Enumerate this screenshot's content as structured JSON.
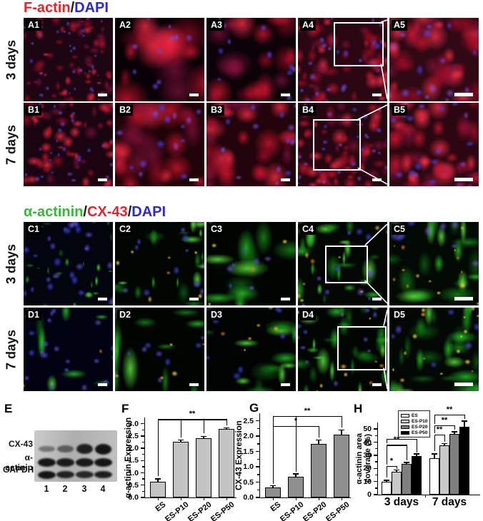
{
  "panel_letters": {
    "e": "E",
    "f": "F",
    "g": "G",
    "h": "H"
  },
  "micrographs": {
    "sections": [
      {
        "name": "factin",
        "header": [
          [
            "F-actin",
            "#e62329"
          ],
          [
            "/",
            "#1a1a1a"
          ],
          [
            "DAPI",
            "#2a2ad0"
          ]
        ],
        "rows": [
          {
            "time_label": "3 days",
            "panels": [
              {
                "label": "A1",
                "seed": 11,
                "base": "#1e0512",
                "red": 64,
                "size": [
                  4,
                  13
                ],
                "blue": 30,
                "bluesize": [
                  3,
                  6
                ]
              },
              {
                "label": "A2",
                "seed": 12,
                "base": "#0a0106",
                "red": 15,
                "size": [
                  20,
                  48
                ],
                "blue": 11,
                "bluesize": [
                  5,
                  9
                ]
              },
              {
                "label": "A3",
                "seed": 13,
                "base": "#0d0208",
                "red": 18,
                "size": [
                  16,
                  42
                ],
                "blue": 12,
                "bluesize": [
                  5,
                  9
                ]
              },
              {
                "label": "A4",
                "seed": 14,
                "base": "#2a0712",
                "red": 52,
                "size": [
                  8,
                  20
                ],
                "blue": 26,
                "bluesize": [
                  5,
                  8
                ],
                "inset": [
                  0.4,
                  0.05,
                  0.53,
                  0.5
                ]
              },
              {
                "label": "A5",
                "seed": 15,
                "base": "#300914",
                "red": 40,
                "size": [
                  12,
                  30
                ],
                "blue": 18,
                "bluesize": [
                  7,
                  11
                ],
                "scalebar": "large"
              }
            ]
          },
          {
            "time_label": "7 days",
            "panels": [
              {
                "label": "B1",
                "seed": 21,
                "base": "#1a0410",
                "red": 55,
                "size": [
                  6,
                  16
                ],
                "blue": 26,
                "bluesize": [
                  4,
                  7
                ]
              },
              {
                "label": "B2",
                "seed": 22,
                "base": "#200309",
                "red": 22,
                "size": [
                  16,
                  40
                ],
                "blue": 16,
                "bluesize": [
                  6,
                  10
                ]
              },
              {
                "label": "B3",
                "seed": 23,
                "base": "#24040c",
                "red": 26,
                "size": [
                  14,
                  34
                ],
                "blue": 16,
                "bluesize": [
                  5,
                  9
                ]
              },
              {
                "label": "B4",
                "seed": 24,
                "base": "#260610",
                "red": 60,
                "size": [
                  7,
                  18
                ],
                "blue": 28,
                "bluesize": [
                  4,
                  7
                ],
                "inset": [
                  0.17,
                  0.2,
                  0.5,
                  0.58
                ]
              },
              {
                "label": "B5",
                "seed": 25,
                "base": "#2c0711",
                "red": 45,
                "size": [
                  12,
                  28
                ],
                "blue": 20,
                "bluesize": [
                  6,
                  9
                ],
                "scalebar": "large"
              }
            ]
          }
        ]
      },
      {
        "name": "actinin",
        "header": [
          [
            "α-actinin",
            "#3bb53a"
          ],
          [
            "/",
            "#1a1a1a"
          ],
          [
            "CX-43",
            "#e62329"
          ],
          [
            "/",
            "#1a1a1a"
          ],
          [
            "DAPI",
            "#2a2ad0"
          ]
        ],
        "rows": [
          {
            "time_label": "3 days",
            "panels": [
              {
                "label": "C1",
                "seed": 31,
                "base": "#02040e",
                "green": 24,
                "size": [
                  5,
                  11
                ],
                "blue": 30,
                "bluesize": [
                  5,
                  10
                ]
              },
              {
                "label": "C2",
                "seed": 32,
                "base": "#010603",
                "green": 20,
                "size": [
                  9,
                  24
                ],
                "blue": 13,
                "bluesize": [
                  5,
                  9
                ],
                "yellow": 8
              },
              {
                "label": "C3",
                "seed": 33,
                "base": "#010502",
                "green": 10,
                "size": [
                  18,
                  48
                ],
                "blue": 8,
                "bluesize": [
                  5,
                  9
                ],
                "yellow": 4
              },
              {
                "label": "C4",
                "seed": 34,
                "base": "#020703",
                "green": 24,
                "size": [
                  11,
                  28
                ],
                "blue": 12,
                "bluesize": [
                  5,
                  9
                ],
                "yellow": 10,
                "inset": [
                  0.3,
                  0.28,
                  0.45,
                  0.42
                ]
              },
              {
                "label": "C5",
                "seed": 35,
                "base": "#030a04",
                "green": 20,
                "size": [
                  16,
                  42
                ],
                "blue": 9,
                "bluesize": [
                  7,
                  11
                ],
                "yellow": 14,
                "scalebar": "large"
              }
            ]
          },
          {
            "time_label": "7 days",
            "panels": [
              {
                "label": "D1",
                "seed": 41,
                "base": "#010312",
                "green": 9,
                "size": [
                  10,
                  32
                ],
                "blue": 22,
                "bluesize": [
                  5,
                  9
                ],
                "yellow": 2
              },
              {
                "label": "D2",
                "seed": 42,
                "base": "#010502",
                "green": 12,
                "size": [
                  18,
                  46
                ],
                "blue": 10,
                "bluesize": [
                  5,
                  9
                ],
                "yellow": 5
              },
              {
                "label": "D3",
                "seed": 43,
                "base": "#010402",
                "green": 13,
                "size": [
                  15,
                  38
                ],
                "blue": 10,
                "bluesize": [
                  5,
                  9
                ],
                "yellow": 6
              },
              {
                "label": "D4",
                "seed": 44,
                "base": "#020603",
                "green": 28,
                "size": [
                  11,
                  28
                ],
                "blue": 12,
                "bluesize": [
                  5,
                  8
                ],
                "yellow": 10,
                "inset": [
                  0.44,
                  0.22,
                  0.52,
                  0.5
                ]
              },
              {
                "label": "D5",
                "seed": 45,
                "base": "#030804",
                "green": 26,
                "size": [
                  16,
                  38
                ],
                "blue": 8,
                "bluesize": [
                  6,
                  10
                ],
                "yellow": 16,
                "scalebar": "large"
              }
            ]
          }
        ]
      }
    ]
  },
  "blot": {
    "row_labels": [
      "CX-43",
      "α-actinin",
      "GAPDH"
    ],
    "lane_labels": [
      "1",
      "2",
      "3",
      "4"
    ],
    "bands": {
      "cx43": [
        0.28,
        0.42,
        0.9,
        1.0
      ],
      "actinin": [
        0.95,
        0.88,
        0.92,
        1.0
      ],
      "gapdh": [
        1.0,
        0.8,
        0.72,
        0.86
      ]
    }
  },
  "chart_data": [
    {
      "panel": "F",
      "type": "bar",
      "title": "",
      "xlabel": "",
      "ylabel": "α-actinin Expression",
      "categories": [
        "ES",
        "ES-P10",
        "ES-P20",
        "ES-P50"
      ],
      "values": [
        0.65,
        2.25,
        2.42,
        2.78
      ],
      "errors": [
        0.1,
        0.08,
        0.06,
        0.05
      ],
      "bar_color": "#c4c4c4",
      "ylim": [
        0,
        3.25
      ],
      "yticks": [
        0,
        0.5,
        1.0,
        1.5,
        2.0,
        2.5,
        3.0
      ],
      "minor_step": 0.25,
      "tick_dec": 1,
      "grid": false,
      "brackets": [
        {
          "from": 0,
          "to": 3,
          "y": 3.18,
          "label": "**",
          "drop_from": 0.88,
          "drop_to": 2.92,
          "extra_drops": [
            {
              "cat": 1,
              "to": 2.45
            },
            {
              "cat": 2,
              "to": 2.6
            }
          ]
        }
      ]
    },
    {
      "panel": "G",
      "type": "bar",
      "title": "",
      "xlabel": "",
      "ylabel": "CX-43 Expression",
      "categories": [
        "ES",
        "ES-P10",
        "ES-P20",
        "ES-P50"
      ],
      "values": [
        0.32,
        0.67,
        1.75,
        2.05
      ],
      "errors": [
        0.06,
        0.1,
        0.12,
        0.15
      ],
      "bar_color": "#8f8f8f",
      "ylim": [
        0,
        2.75
      ],
      "yticks": [
        0,
        0.5,
        1.0,
        1.5,
        2.0,
        2.5
      ],
      "minor_step": 0.25,
      "tick_dec": 1,
      "grid": false,
      "brackets": [
        {
          "from": 0,
          "to": 2,
          "y": 2.33,
          "label": "*",
          "drop_from": 0.45,
          "drop_to": 1.95
        },
        {
          "from": 0,
          "to": 3,
          "y": 2.66,
          "label": "**",
          "drop_from": 0.45,
          "drop_to": 2.28,
          "extra_drops": [
            {
              "cat": 1,
              "to": 0.85
            }
          ]
        }
      ]
    },
    {
      "panel": "H",
      "type": "bar",
      "title": "",
      "xlabel": "",
      "ylabel_lines": [
        "α-actinin area",
        "coverage (%)"
      ],
      "categories": [
        "3 days",
        "7 days"
      ],
      "series": [
        {
          "name": "ES",
          "color": "#ffffff",
          "values": [
            10.0,
            28.0
          ],
          "errors": [
            0.8,
            3.0
          ]
        },
        {
          "name": "ES-P10",
          "color": "#c9c9c9",
          "values": [
            17.5,
            37.5
          ],
          "errors": [
            1.2,
            1.5
          ]
        },
        {
          "name": "ES-P20",
          "color": "#7f7f7f",
          "values": [
            23.5,
            46.5
          ],
          "errors": [
            1.0,
            1.5
          ]
        },
        {
          "name": "ES-P50",
          "color": "#000000",
          "values": [
            29.5,
            52.0
          ],
          "errors": [
            1.5,
            4.0
          ]
        }
      ],
      "ylim": [
        0,
        55
      ],
      "yticks": [
        0,
        10,
        20,
        30,
        40,
        50
      ],
      "minor_step": 5,
      "tick_dec": 0,
      "grid": false,
      "legend_position": "top-left-inside",
      "brackets": [
        {
          "group": 0,
          "from": 0,
          "to": 1,
          "y": 22,
          "label": "*",
          "drop_from": 13,
          "drop_to": 19.5
        },
        {
          "group": 0,
          "from": 0,
          "to": 2,
          "y": 38,
          "label": "**",
          "drop_from": 23,
          "drop_to": 26
        },
        {
          "group": 0,
          "from": 0,
          "to": 3,
          "y": 42.5,
          "label": "**",
          "drop_from": 39,
          "drop_to": 32
        },
        {
          "group": 1,
          "from": 0,
          "to": 1,
          "y": 46,
          "label": "**",
          "drop_from": 33,
          "drop_to": 40.5
        },
        {
          "group": 1,
          "from": 0,
          "to": 2,
          "y": 53,
          "label": "**",
          "drop_from": 47,
          "drop_to": 49.5
        },
        {
          "group": 1,
          "from": 0,
          "to": 3,
          "y": 61,
          "label": "**",
          "drop_from": 54,
          "drop_to": 57.5
        }
      ]
    }
  ]
}
